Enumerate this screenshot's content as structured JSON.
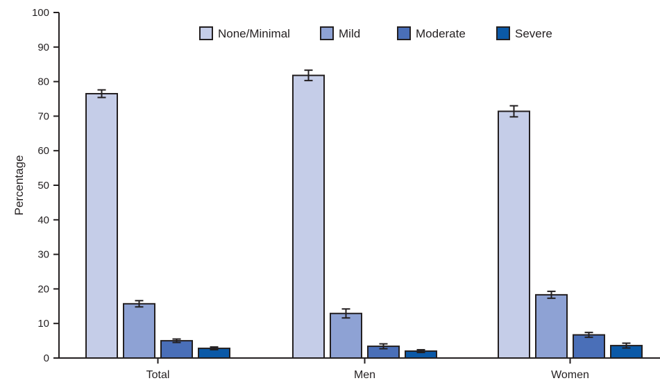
{
  "chart_data": {
    "type": "bar",
    "title": "",
    "xlabel": "",
    "ylabel": "Percentage",
    "ylim": [
      0,
      100
    ],
    "yticks": [
      0,
      10,
      20,
      30,
      40,
      50,
      60,
      70,
      80,
      90,
      100
    ],
    "categories": [
      "Total",
      "Men",
      "Women"
    ],
    "grid": false,
    "legend_position": "top",
    "error_bars": true,
    "series": [
      {
        "name": "None/Minimal",
        "color": "#c5cde8",
        "values": [
          76.5,
          81.8,
          71.4
        ],
        "err_low": [
          75.4,
          80.3,
          69.8
        ],
        "err_high": [
          77.6,
          83.3,
          73.0
        ]
      },
      {
        "name": "Mild",
        "color": "#8ea2d4",
        "values": [
          15.7,
          12.9,
          18.3
        ],
        "err_low": [
          14.8,
          11.6,
          17.3
        ],
        "err_high": [
          16.6,
          14.2,
          19.3
        ]
      },
      {
        "name": "Moderate",
        "color": "#4a6fb8",
        "values": [
          5.0,
          3.4,
          6.7
        ],
        "err_low": [
          4.5,
          2.7,
          6.0
        ],
        "err_high": [
          5.5,
          4.1,
          7.4
        ]
      },
      {
        "name": "Severe",
        "color": "#0b59a7",
        "values": [
          2.8,
          2.0,
          3.6
        ],
        "err_low": [
          2.4,
          1.6,
          2.9
        ],
        "err_high": [
          3.2,
          2.4,
          4.3
        ]
      }
    ]
  }
}
